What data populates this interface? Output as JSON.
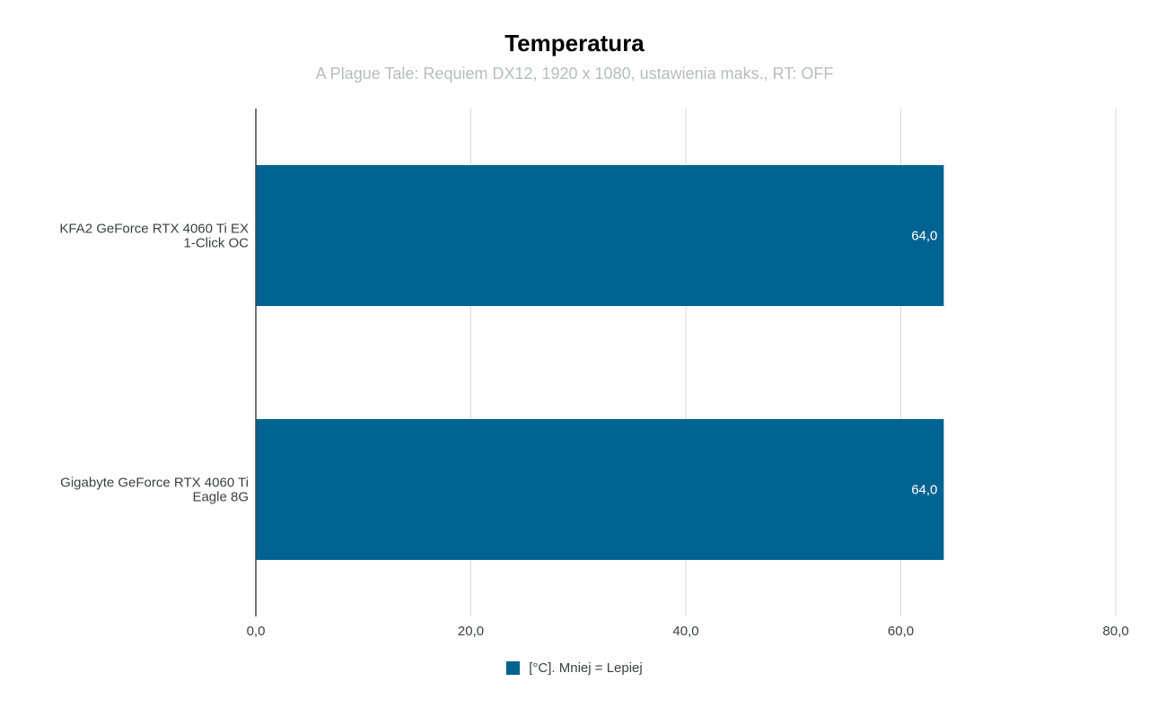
{
  "chart_data": {
    "type": "bar",
    "orientation": "horizontal",
    "title": "Temperatura",
    "subtitle": "A Plague Tale: Requiem DX12, 1920 x 1080, ustawienia maks., RT: OFF",
    "categories": [
      [
        "KFA2 GeForce RTX 4060 Ti EX",
        "1-Click OC"
      ],
      [
        "Gigabyte GeForce RTX 4060 Ti",
        "Eagle 8G"
      ]
    ],
    "series": [
      {
        "name": "[°C]. Mniej = Lepiej",
        "values": [
          64.0,
          64.0
        ],
        "data_labels": [
          "64,0",
          "64,0"
        ],
        "color": "#006391"
      }
    ],
    "xlim": [
      0,
      80
    ],
    "x_ticks": [
      {
        "value": 0,
        "label": "0,0"
      },
      {
        "value": 20,
        "label": "20,0"
      },
      {
        "value": 40,
        "label": "40,0"
      },
      {
        "value": 60,
        "label": "60,0"
      },
      {
        "value": 80,
        "label": "80,0"
      }
    ],
    "grid": true,
    "legend_position": "bottom",
    "colors": {
      "bar": "#006391",
      "grid": "#d9d9d9",
      "axis": "#444444",
      "label_text": "#3b4043",
      "data_label_text": "#ffffff",
      "subtitle": "#b8bcbf"
    }
  }
}
